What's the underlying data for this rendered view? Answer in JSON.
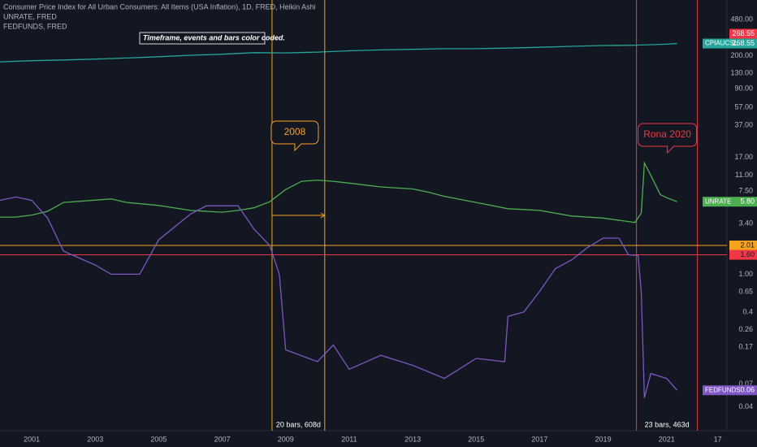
{
  "chart_data": {
    "type": "line",
    "title": "Consumer Price Index for All Urban Consumers: All Items (USA Inflation), 1D, FRED, Heikin Ashi",
    "subtitles": [
      "UNRATE, FRED",
      "FEDFUNDS, FRED"
    ],
    "annotation": "Timeframe, events and bars color coded.",
    "log_scale": true,
    "grid": false,
    "xlim": [
      2000,
      2022.9
    ],
    "xticks": [
      2001,
      2003,
      2005,
      2007,
      2009,
      2011,
      2013,
      2015,
      2017,
      2019,
      2021,
      {
        "value": 2022.61,
        "label": "17"
      }
    ],
    "ylim": [
      0.0225,
      771
    ],
    "yticks": [
      {
        "value": 480,
        "label": "480.00"
      },
      {
        "value": 268.55,
        "label": "268.55"
      },
      {
        "value": 200,
        "label": "200.00"
      },
      {
        "value": 130,
        "label": "130.00"
      },
      {
        "value": 90,
        "label": "90.00"
      },
      {
        "value": 57,
        "label": "57.00"
      },
      {
        "value": 37,
        "label": "37.00"
      },
      {
        "value": 17,
        "label": "17.00"
      },
      {
        "value": 11,
        "label": "11.00"
      },
      {
        "value": 7.5,
        "label": "7.50"
      },
      {
        "value": 5.8,
        "label": "5.80"
      },
      {
        "value": 3.4,
        "label": "3.40"
      },
      {
        "value": 1,
        "label": "1.00"
      },
      0.65,
      0.4,
      0.26,
      0.17,
      0.07,
      0.06,
      0.04
    ],
    "price_labels": [
      {
        "value": 268.55,
        "label": "268.55",
        "color": "#f23645"
      }
    ],
    "hlines": [
      {
        "value": 2.01,
        "label": "2.01",
        "color": "#f7a21b"
      },
      {
        "value": 1.6,
        "label": "1.60",
        "color": "#f23645"
      }
    ],
    "events": [
      {
        "x": [
          2008.57,
          2010.23
        ],
        "color": "#f7a21b",
        "label": "20 bars, 608d",
        "callout": "2008"
      },
      {
        "x": [
          2020.05,
          2021.97
        ],
        "color": "#f23645",
        "label": "23 bars, 463d",
        "callout": "Rona 2020"
      }
    ],
    "series": [
      {
        "name": "CPIAUCSL",
        "color": "#26a69a",
        "x": [
          2000,
          2001,
          2002,
          2003,
          2004,
          2005,
          2006,
          2007,
          2008,
          2009,
          2010,
          2011,
          2012,
          2013,
          2014,
          2015,
          2016,
          2017,
          2018,
          2019,
          2020,
          2021,
          2021.33
        ],
        "values": [
          172,
          177,
          180,
          184,
          189,
          195,
          202,
          207,
          215,
          214,
          218,
          225,
          230,
          233,
          237,
          237,
          240,
          245,
          251,
          256,
          258,
          264,
          268.55
        ]
      },
      {
        "name": "UNRATE",
        "color": "#4caf50",
        "x": [
          2000,
          2000.5,
          2001,
          2001.5,
          2002,
          2003.5,
          2004,
          2005,
          2006,
          2007,
          2007.5,
          2008,
          2008.5,
          2009,
          2009.5,
          2010,
          2010.5,
          2011,
          2012,
          2013,
          2013.5,
          2014,
          2015,
          2016,
          2017,
          2018,
          2019,
          2020,
          2020.2,
          2020.3,
          2020.5,
          2020.8,
          2021,
          2021.33
        ],
        "values": [
          4.0,
          4.0,
          4.2,
          4.6,
          5.7,
          6.2,
          5.7,
          5.3,
          4.7,
          4.5,
          4.7,
          5.0,
          5.8,
          7.8,
          9.5,
          9.8,
          9.5,
          9.1,
          8.3,
          7.9,
          7.3,
          6.6,
          5.7,
          4.9,
          4.7,
          4.1,
          3.9,
          3.5,
          4.4,
          14.8,
          11,
          6.9,
          6.4,
          5.8
        ]
      },
      {
        "name": "FEDFUNDS",
        "color": "#7e57c2",
        "x": [
          2000,
          2000.5,
          2001,
          2001.5,
          2002,
          2003,
          2003.5,
          2004.4,
          2005,
          2006,
          2006.5,
          2007.5,
          2008,
          2008.5,
          2008.8,
          2009,
          2010,
          2010.5,
          2011,
          2012,
          2013,
          2014,
          2015,
          2015.9,
          2016,
          2016.5,
          2017,
          2017.5,
          2018,
          2018.5,
          2019,
          2019.5,
          2019.8,
          2020.1,
          2020.2,
          2020.3,
          2020.5,
          2021,
          2021.33
        ],
        "values": [
          6.0,
          6.5,
          6.0,
          3.9,
          1.75,
          1.25,
          1.0,
          1.0,
          2.3,
          4.3,
          5.25,
          5.25,
          3.0,
          2.0,
          1.0,
          0.16,
          0.12,
          0.18,
          0.1,
          0.14,
          0.11,
          0.08,
          0.13,
          0.12,
          0.36,
          0.4,
          0.66,
          1.15,
          1.41,
          1.9,
          2.4,
          2.4,
          1.6,
          1.58,
          0.65,
          0.05,
          0.09,
          0.08,
          0.06
        ]
      }
    ]
  }
}
